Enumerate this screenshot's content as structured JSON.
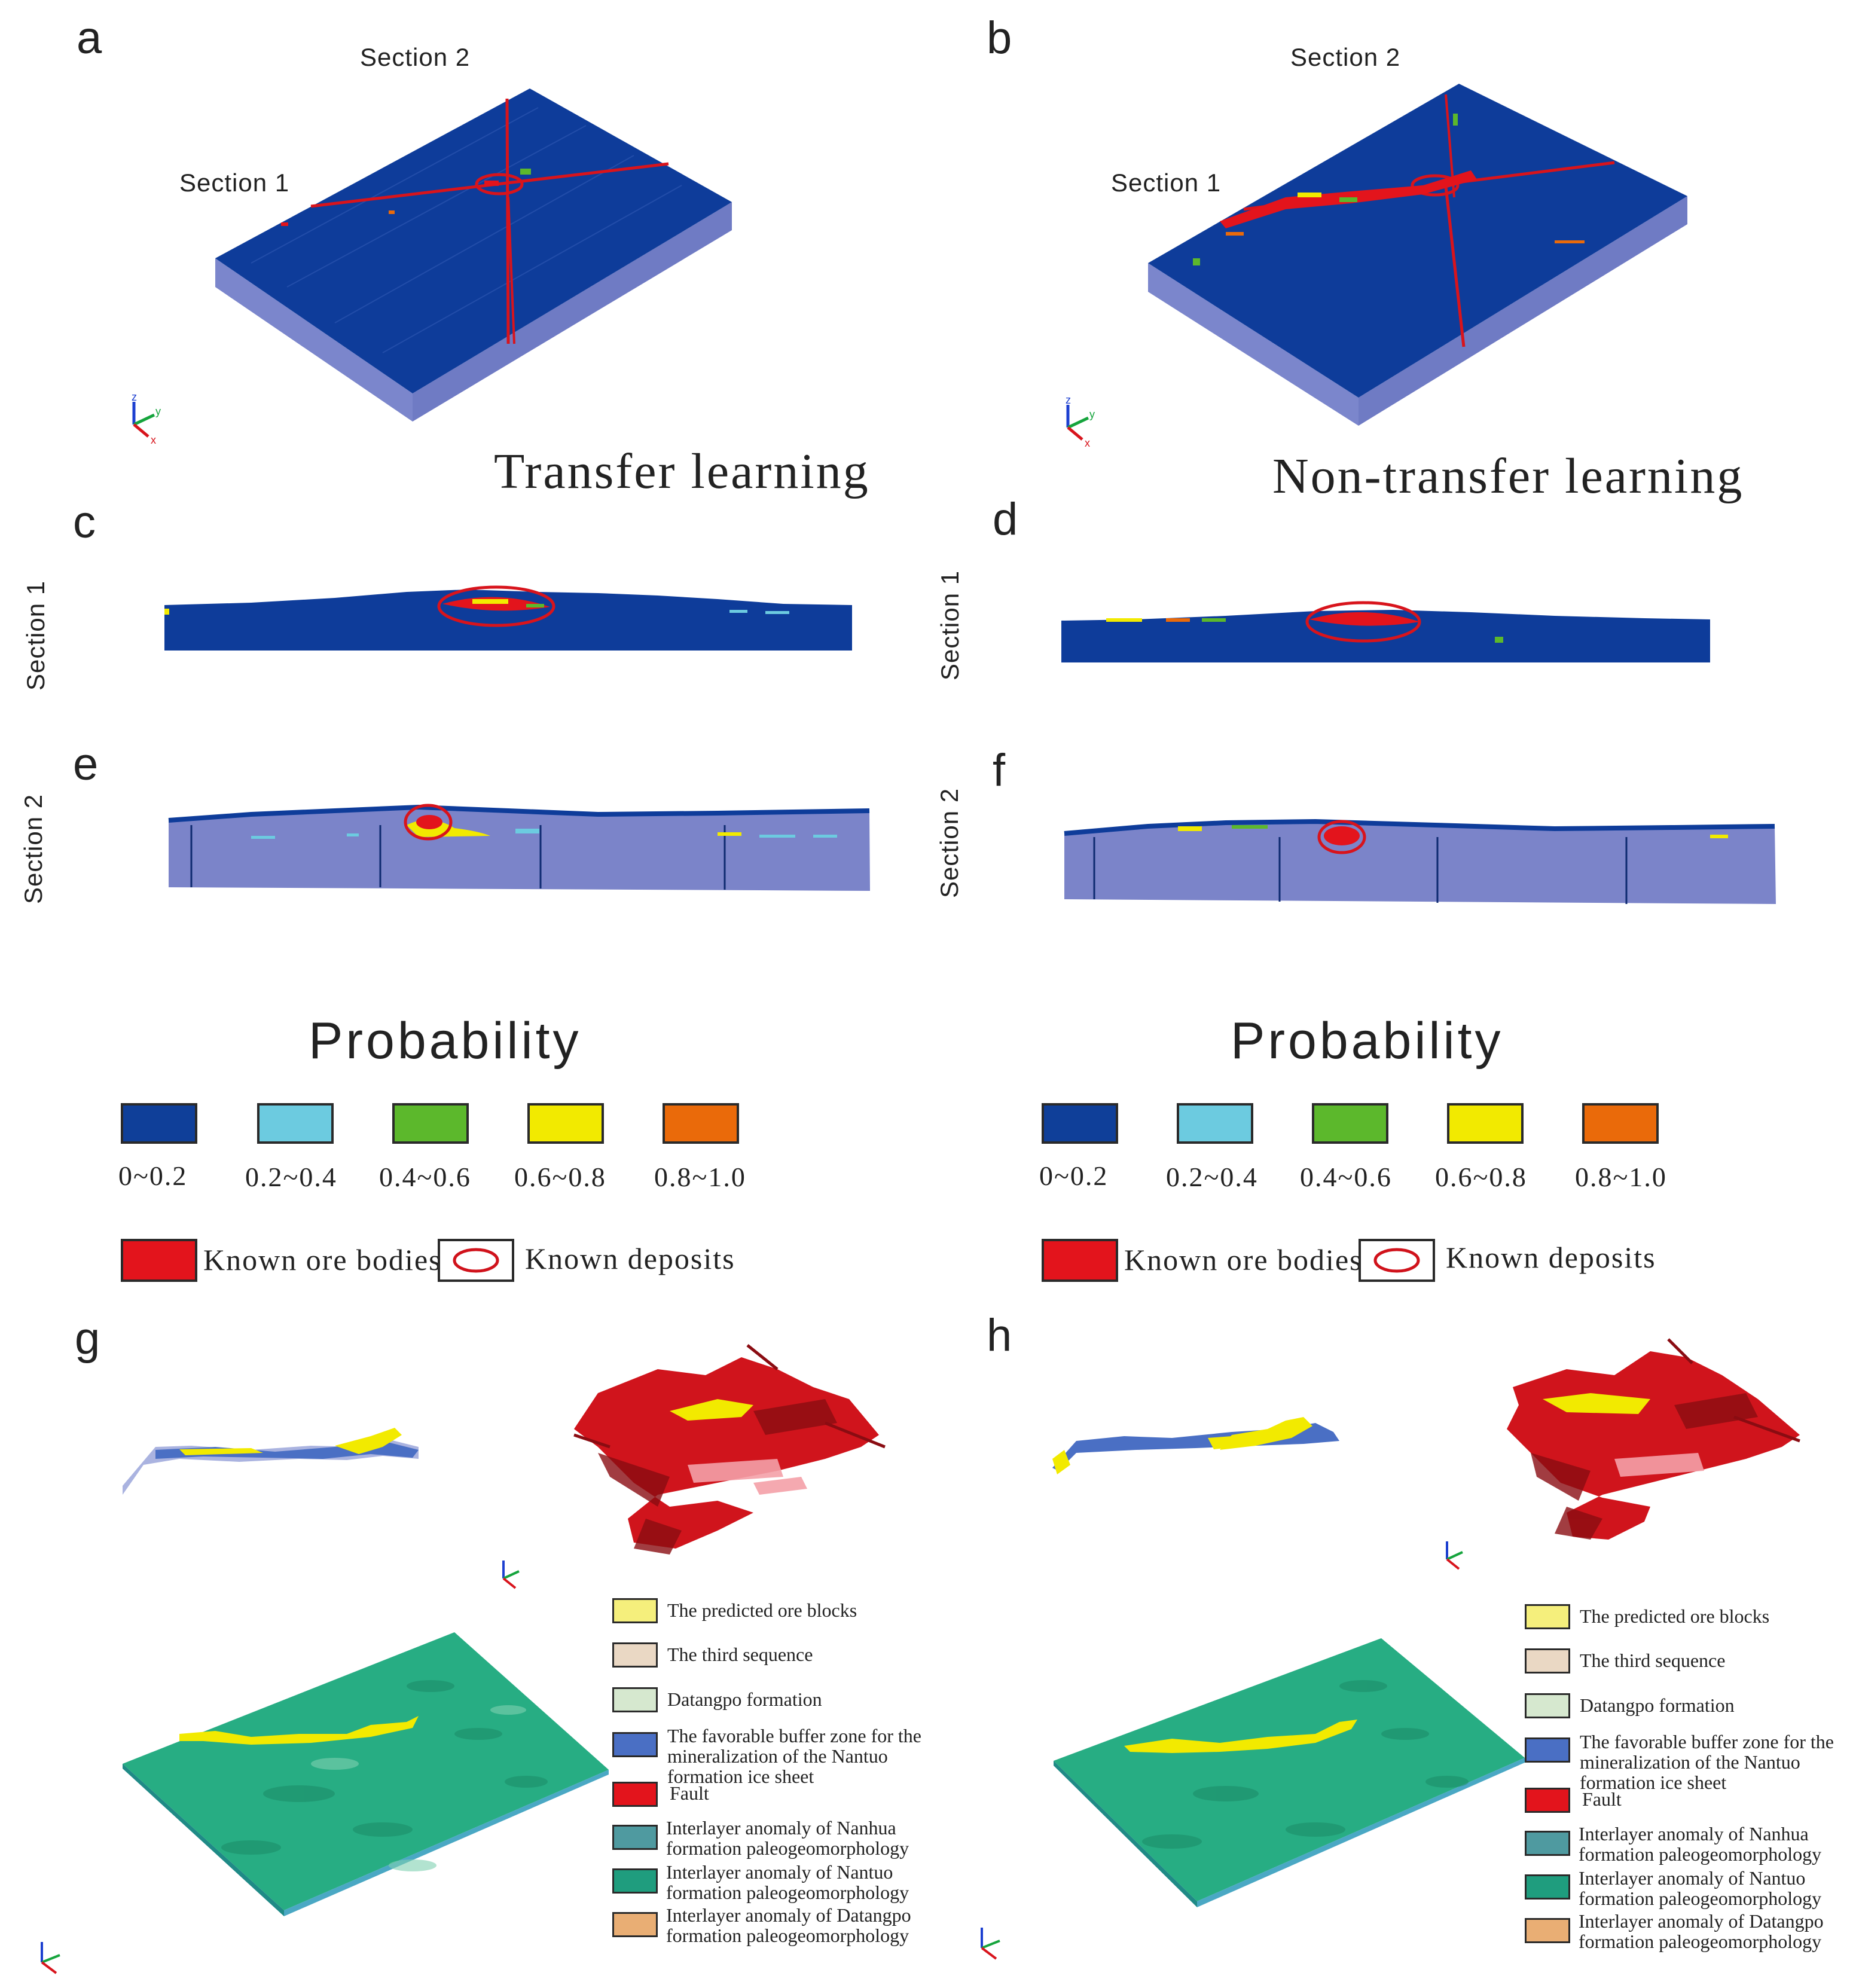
{
  "panels": {
    "a": "a",
    "b": "b",
    "c": "c",
    "d": "d",
    "e": "e",
    "f": "f",
    "g": "g",
    "h": "h"
  },
  "section_labels": {
    "section1": "Section 1",
    "section2": "Section 2"
  },
  "titles": {
    "transfer": "Transfer learning",
    "non_transfer": "Non-transfer learning"
  },
  "probability_legend": {
    "title": "Probability",
    "classes": [
      {
        "label": "0~0.2",
        "color": "#0f3f99"
      },
      {
        "label": "0.2~0.4",
        "color": "#6ccbe0"
      },
      {
        "label": "0.4~0.6",
        "color": "#5cb82c"
      },
      {
        "label": "0.6~0.8",
        "color": "#f2ea00"
      },
      {
        "label": "0.8~1.0",
        "color": "#ea6a0a"
      }
    ],
    "known_ore_bodies": "Known ore bodies",
    "known_deposits": "Known deposits",
    "ore_color": "#e3141c",
    "deposit_ring_color": "#d0121b"
  },
  "model_legend": [
    {
      "label": "The predicted ore blocks",
      "color": "#f5ef7c"
    },
    {
      "label": "The third sequence",
      "color": "#ead8c4"
    },
    {
      "label": "Datangpo formation",
      "color": "#d6e8cf"
    },
    {
      "label": "The favorable buffer zone for the mineralization of the Nantuo formation ice sheet",
      "color": "#4a6fc4"
    },
    {
      "label": "Fault",
      "color": "#e3141c"
    },
    {
      "label": "Interlayer anomaly of Nanhua formation paleogeomorphology",
      "color": "#4f9aa0"
    },
    {
      "label": "Interlayer anomaly of Nantuo formation paleogeomorphology",
      "color": "#1f9d7e"
    },
    {
      "label": "Interlayer anomaly of Datangpo formation paleogeomorphology",
      "color": "#e9ae74"
    }
  ],
  "axis": {
    "z": "z",
    "y": "y",
    "x": "x"
  },
  "colors": {
    "block_top": "#0e3c9a",
    "block_side": "#7b86cc",
    "section2_fill": "#7b84c9",
    "terrain": "#27ad83",
    "section_line": "#d8141c"
  }
}
